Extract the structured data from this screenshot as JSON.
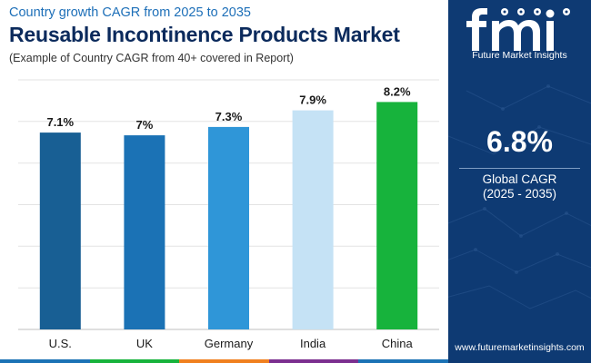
{
  "header": {
    "subtitle": "Country growth CAGR from 2025 to 2035",
    "title": "Reusable Incontinence Products Market",
    "note": "(Example of Country CAGR from 40+ covered in Report)"
  },
  "chart_data": {
    "type": "bar",
    "title": "Reusable Incontinence Products Market",
    "subtitle": "Country growth CAGR from 2025 to 2035",
    "categories": [
      "U.S.",
      "UK",
      "Germany",
      "India",
      "China"
    ],
    "values": [
      7.1,
      7.0,
      7.3,
      7.9,
      8.2
    ],
    "data_labels": [
      "7.1%",
      "7%",
      "7.3%",
      "7.9%",
      "8.2%"
    ],
    "colors": [
      "#185f94",
      "#1b72b5",
      "#2f96d8",
      "#c5e2f5",
      "#17b33c"
    ],
    "xlabel": "",
    "ylabel": "",
    "unit": "%",
    "ylim": [
      0,
      9
    ],
    "grid": true
  },
  "sidebar": {
    "brand_text": "Future Market Insights",
    "global_cagr_value": "6.8%",
    "global_cagr_label": "Global CAGR",
    "global_cagr_period": "(2025 - 2035)",
    "website": "www.futuremarketinsights.com"
  },
  "colors": {
    "title": "#0b2a5c",
    "subtitle": "#1d6fb8",
    "panel_bg": "#0e3a73",
    "strip": [
      "#1b72b5",
      "#17b33c",
      "#f0801f",
      "#7b2f8f",
      "#1b72b5"
    ]
  }
}
